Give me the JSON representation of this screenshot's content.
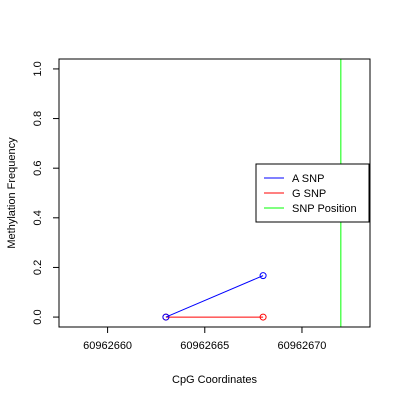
{
  "chart_data": {
    "type": "line",
    "title": "",
    "xlabel": "CpG Coordinates",
    "ylabel": "Methylation Frequency",
    "xlim": [
      60962657.5,
      60962673.5
    ],
    "ylim": [
      -0.04,
      1.04
    ],
    "x_ticks": [
      60962660,
      60962665,
      60962670
    ],
    "x_tick_labels": [
      "60962660",
      "60962665",
      "60962670"
    ],
    "y_ticks": [
      0.0,
      0.2,
      0.4,
      0.6,
      0.8,
      1.0
    ],
    "y_tick_labels": [
      "0.0",
      "0.2",
      "0.4",
      "0.6",
      "0.8",
      "1.0"
    ],
    "grid": false,
    "legend_position": "right",
    "series": [
      {
        "name": "A SNP",
        "color": "#0000ff",
        "x": [
          60962663,
          60962668
        ],
        "y": [
          0.0,
          0.167
        ]
      },
      {
        "name": "G SNP",
        "color": "#ff0000",
        "x": [
          60962663,
          60962668
        ],
        "y": [
          0.0,
          0.0
        ]
      }
    ],
    "vlines": [
      {
        "name": "SNP Position",
        "color": "#00ff00",
        "x": 60962672
      }
    ]
  }
}
